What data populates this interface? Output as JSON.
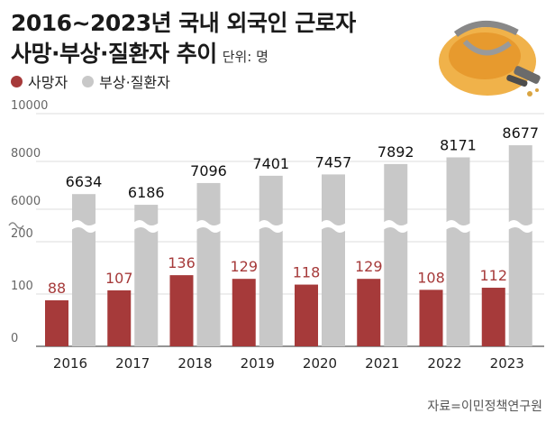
{
  "title_line1": "2016~2023년 국내 외국인 근로자",
  "title_line2": "사망·부상·질환자 추이",
  "unit": "단위: 명",
  "source": "자료=이민정책연구원",
  "colors": {
    "deaths": "#a63a3a",
    "injuries": "#c8c8c8",
    "grid": "#dddddd",
    "axis": "#555555"
  },
  "icon": "hard-hat-icon",
  "chart_data": {
    "type": "bar",
    "categories": [
      "2016",
      "2017",
      "2018",
      "2019",
      "2020",
      "2021",
      "2022",
      "2023"
    ],
    "series": [
      {
        "name": "사망자",
        "values": [
          88,
          107,
          136,
          129,
          118,
          129,
          108,
          112
        ]
      },
      {
        "name": "부상·질환자",
        "values": [
          6634,
          6186,
          7096,
          7401,
          7457,
          7892,
          8171,
          8677
        ]
      }
    ],
    "y_ticks": [
      "0",
      "100",
      "200",
      "6000",
      "8000",
      "10000"
    ],
    "axis_break": true,
    "legend_position": "top-left",
    "grid": true
  }
}
